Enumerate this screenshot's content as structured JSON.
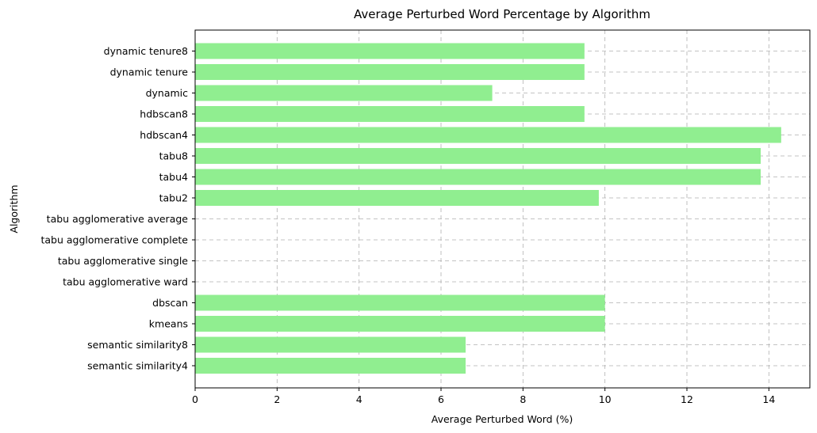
{
  "chart_data": {
    "type": "bar",
    "orientation": "horizontal",
    "title": "Average Perturbed Word Percentage by Algorithm",
    "xlabel": "Average Perturbed Word (%)",
    "ylabel": "Algorithm",
    "xlim": [
      0,
      15
    ],
    "xticks": [
      0,
      2,
      4,
      6,
      8,
      10,
      12,
      14
    ],
    "grid": true,
    "bar_color": "#90ee90",
    "categories": [
      "semantic similarity4",
      "semantic similarity8",
      "kmeans",
      "dbscan",
      "tabu agglomerative ward",
      "tabu agglomerative single",
      "tabu agglomerative complete",
      "tabu agglomerative average",
      "tabu2",
      "tabu4",
      "tabu8",
      "hdbscan4",
      "hdbscan8",
      "dynamic",
      "dynamic tenure",
      "dynamic tenure8"
    ],
    "values": [
      6.6,
      6.6,
      10.0,
      10.0,
      0,
      0,
      0,
      0,
      9.85,
      13.8,
      13.8,
      14.3,
      9.5,
      7.25,
      9.5,
      9.5
    ]
  }
}
